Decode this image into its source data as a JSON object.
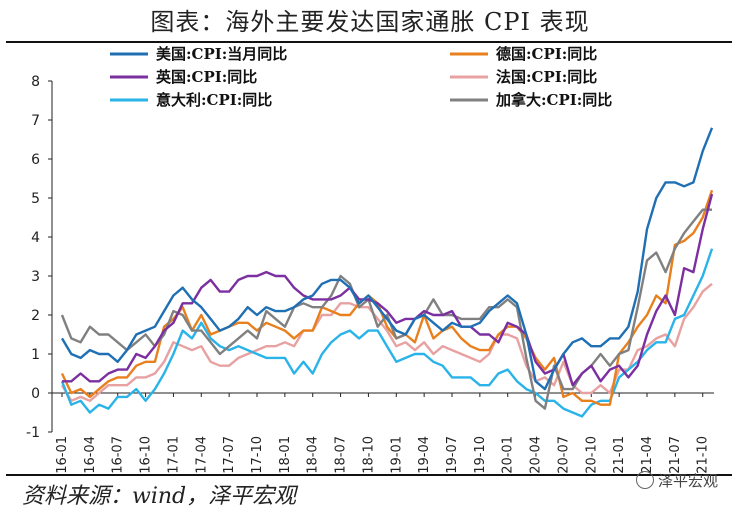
{
  "title": "图表：海外主要发达国家通胀 CPI 表现",
  "source": "资料来源：wind，泽平宏观",
  "watermark": "泽平宏观",
  "chart_data": {
    "type": "line",
    "title": "图表：海外主要发达国家通胀 CPI 表现",
    "xlabel": "",
    "ylabel": "",
    "ylim": [
      -1,
      8
    ],
    "yticks": [
      -1,
      0,
      1,
      2,
      3,
      4,
      5,
      6,
      7,
      8
    ],
    "x_tick_labels": [
      "2016-01",
      "2016-04",
      "2016-07",
      "2016-10",
      "2017-01",
      "2017-04",
      "2017-07",
      "2017-10",
      "2018-01",
      "2018-04",
      "2018-07",
      "2018-10",
      "2019-01",
      "2019-04",
      "2019-07",
      "2019-10",
      "2020-01",
      "2020-04",
      "2020-07",
      "2020-10",
      "2021-01",
      "2021-04",
      "2021-07",
      "2021-10"
    ],
    "x_start": "2016-01",
    "x_end": "2021-11",
    "grid": false,
    "legend_position": "top",
    "series": [
      {
        "name": "美国:CPI:当月同比",
        "color": "#1f6fb4",
        "values": [
          1.4,
          1.0,
          0.9,
          1.1,
          1.0,
          1.0,
          0.8,
          1.1,
          1.5,
          1.6,
          1.7,
          2.1,
          2.5,
          2.7,
          2.4,
          2.2,
          1.9,
          1.6,
          1.7,
          1.9,
          2.2,
          2.0,
          2.2,
          2.1,
          2.1,
          2.2,
          2.4,
          2.5,
          2.8,
          2.9,
          2.9,
          2.7,
          2.3,
          2.5,
          2.2,
          1.9,
          1.6,
          1.5,
          1.9,
          2.0,
          1.8,
          1.6,
          1.8,
          1.7,
          1.7,
          1.8,
          2.1,
          2.3,
          2.5,
          2.3,
          1.5,
          0.3,
          0.1,
          0.6,
          1.0,
          1.3,
          1.4,
          1.2,
          1.2,
          1.4,
          1.4,
          1.7,
          2.6,
          4.2,
          5.0,
          5.4,
          5.4,
          5.3,
          5.4,
          6.2,
          6.8
        ]
      },
      {
        "name": "德国:CPI:同比",
        "color": "#e8801e",
        "values": [
          0.5,
          0.0,
          0.1,
          -0.1,
          0.1,
          0.3,
          0.4,
          0.4,
          0.7,
          0.8,
          0.8,
          1.7,
          1.9,
          2.2,
          1.6,
          2.0,
          1.5,
          1.6,
          1.7,
          1.8,
          1.8,
          1.6,
          1.8,
          1.7,
          1.6,
          1.4,
          1.6,
          1.6,
          2.2,
          2.1,
          2.0,
          2.0,
          2.3,
          2.5,
          2.3,
          1.7,
          1.4,
          1.5,
          1.3,
          2.0,
          1.4,
          1.6,
          1.7,
          1.4,
          1.2,
          1.1,
          1.1,
          1.5,
          1.7,
          1.7,
          1.4,
          0.9,
          0.6,
          0.9,
          -0.1,
          0.0,
          -0.2,
          -0.2,
          -0.3,
          -0.3,
          1.0,
          1.3,
          1.7,
          2.0,
          2.5,
          2.3,
          3.8,
          3.9,
          4.1,
          4.5,
          5.2
        ]
      },
      {
        "name": "英国:CPI:同比",
        "color": "#7b2fa0",
        "values": [
          0.3,
          0.3,
          0.5,
          0.3,
          0.3,
          0.5,
          0.6,
          0.6,
          1.0,
          0.9,
          1.2,
          1.6,
          1.8,
          2.3,
          2.3,
          2.7,
          2.9,
          2.6,
          2.6,
          2.9,
          3.0,
          3.0,
          3.1,
          3.0,
          3.0,
          2.7,
          2.5,
          2.4,
          2.4,
          2.4,
          2.5,
          2.7,
          2.4,
          2.4,
          2.3,
          2.1,
          1.8,
          1.9,
          1.9,
          2.1,
          2.0,
          2.0,
          2.1,
          1.7,
          1.7,
          1.5,
          1.5,
          1.3,
          1.8,
          1.7,
          1.5,
          0.8,
          0.5,
          0.6,
          1.0,
          0.2,
          0.5,
          0.7,
          0.3,
          0.6,
          0.7,
          0.4,
          0.7,
          1.5,
          2.1,
          2.5,
          2.0,
          3.2,
          3.1,
          4.2,
          5.1
        ]
      },
      {
        "name": "法国:CPI:同比",
        "color": "#e8a1a1",
        "values": [
          0.2,
          -0.2,
          -0.1,
          -0.2,
          0.0,
          0.2,
          0.2,
          0.2,
          0.4,
          0.4,
          0.5,
          0.8,
          1.3,
          1.2,
          1.1,
          1.2,
          0.8,
          0.7,
          0.7,
          0.9,
          1.0,
          1.1,
          1.2,
          1.2,
          1.3,
          1.2,
          1.6,
          1.6,
          2.0,
          2.0,
          2.3,
          2.3,
          2.2,
          2.2,
          1.9,
          1.6,
          1.2,
          1.3,
          1.1,
          1.3,
          1.0,
          1.2,
          1.1,
          1.0,
          0.9,
          0.8,
          1.0,
          1.5,
          1.5,
          1.4,
          0.7,
          0.3,
          0.4,
          0.2,
          0.8,
          0.2,
          0.0,
          0.0,
          0.2,
          0.0,
          0.6,
          0.6,
          1.1,
          1.2,
          1.4,
          1.5,
          1.2,
          1.9,
          2.2,
          2.6,
          2.8
        ]
      },
      {
        "name": "意大利:CPI:同比",
        "color": "#29b3e8",
        "values": [
          0.3,
          -0.3,
          -0.2,
          -0.5,
          -0.3,
          -0.4,
          -0.1,
          -0.1,
          0.1,
          -0.2,
          0.1,
          0.5,
          1.0,
          1.6,
          1.4,
          1.8,
          1.4,
          1.2,
          1.1,
          1.2,
          1.1,
          1.0,
          0.9,
          0.9,
          0.9,
          0.5,
          0.8,
          0.5,
          1.0,
          1.3,
          1.5,
          1.6,
          1.4,
          1.6,
          1.6,
          1.2,
          0.8,
          0.9,
          1.0,
          1.0,
          0.8,
          0.7,
          0.4,
          0.4,
          0.4,
          0.2,
          0.2,
          0.5,
          0.6,
          0.3,
          0.1,
          0.0,
          -0.2,
          -0.2,
          -0.4,
          -0.5,
          -0.6,
          -0.3,
          -0.2,
          -0.2,
          0.4,
          0.6,
          0.8,
          1.1,
          1.3,
          1.3,
          1.9,
          2.0,
          2.5,
          3.0,
          3.7
        ]
      },
      {
        "name": "加拿大:CPI:同比",
        "color": "#808080",
        "values": [
          2.0,
          1.4,
          1.3,
          1.7,
          1.5,
          1.5,
          1.3,
          1.1,
          1.3,
          1.5,
          1.2,
          1.5,
          2.1,
          2.0,
          1.6,
          1.6,
          1.3,
          1.0,
          1.2,
          1.4,
          1.6,
          1.4,
          2.1,
          1.9,
          1.7,
          2.2,
          2.3,
          2.2,
          2.2,
          2.5,
          3.0,
          2.8,
          2.2,
          2.4,
          1.7,
          2.0,
          1.4,
          1.5,
          1.9,
          2.0,
          2.4,
          2.0,
          2.0,
          1.9,
          1.9,
          1.9,
          2.2,
          2.2,
          2.4,
          2.2,
          0.9,
          -0.2,
          -0.4,
          0.7,
          0.1,
          0.1,
          0.5,
          0.7,
          1.0,
          0.7,
          1.0,
          1.1,
          2.2,
          3.4,
          3.6,
          3.1,
          3.7,
          4.1,
          4.4,
          4.7,
          4.7
        ]
      }
    ]
  }
}
